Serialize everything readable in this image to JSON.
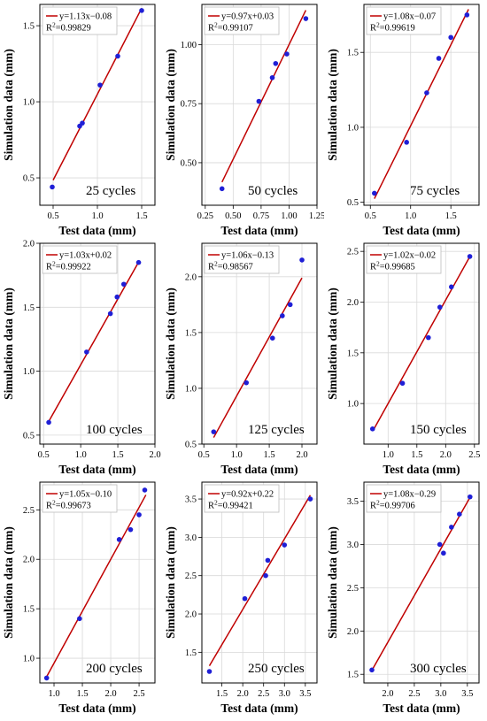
{
  "x_axis_label": "Test data (mm)",
  "y_axis_label": "Simulation data (mm)",
  "colors": {
    "line": "#c00000",
    "points": "#1f1fd6"
  },
  "chart_data": [
    {
      "type": "scatter",
      "caption": "25 cycles",
      "equation": "y=1.13x−0.08",
      "r2_prefix": "R",
      "r2_sup": "2",
      "r2_value": "=0.99829",
      "fit": {
        "slope": 1.13,
        "intercept": -0.08,
        "x_range": [
          0.5,
          1.5
        ]
      },
      "x": [
        0.49,
        0.8,
        0.83,
        1.03,
        1.23,
        1.5
      ],
      "y": [
        0.44,
        0.84,
        0.86,
        1.11,
        1.3,
        1.6
      ],
      "xlim": [
        0.35,
        1.65
      ],
      "ylim": [
        0.32,
        1.64
      ],
      "x_ticks": [
        0.5,
        1.0,
        1.5
      ],
      "x_tick_labels": [
        "0.5",
        "1.0",
        "1.5"
      ],
      "y_ticks": [
        0.5,
        1.0,
        1.5
      ],
      "y_tick_labels": [
        "0.5",
        "1.0",
        "1.5"
      ]
    },
    {
      "type": "scatter",
      "caption": "50 cycles",
      "equation": "y=0.97x+0.03",
      "r2_prefix": "R",
      "r2_sup": "2",
      "r2_value": "=0.99107",
      "fit": {
        "slope": 0.97,
        "intercept": 0.03,
        "x_range": [
          0.4,
          1.15
        ]
      },
      "x": [
        0.4,
        0.73,
        0.85,
        0.88,
        0.98,
        1.15
      ],
      "y": [
        0.39,
        0.76,
        0.86,
        0.92,
        0.96,
        1.11
      ],
      "xlim": [
        0.22,
        1.25
      ],
      "ylim": [
        0.32,
        1.17
      ],
      "x_ticks": [
        0.25,
        0.5,
        0.75,
        1.0,
        1.25
      ],
      "x_tick_labels": [
        "0.25",
        "0.50",
        "0.75",
        "1.00",
        "1.25"
      ],
      "y_ticks": [
        0.5,
        0.75,
        1.0
      ],
      "y_tick_labels": [
        "0.50",
        "0.75",
        "1.00"
      ]
    },
    {
      "type": "scatter",
      "caption": "75 cycles",
      "equation": "y=1.08x−0.07",
      "r2_prefix": "R",
      "r2_sup": "2",
      "r2_value": "=0.99619",
      "fit": {
        "slope": 1.08,
        "intercept": -0.07,
        "x_range": [
          0.55,
          1.72
        ]
      },
      "x": [
        0.55,
        0.95,
        1.2,
        1.35,
        1.5,
        1.7
      ],
      "y": [
        0.56,
        0.9,
        1.23,
        1.46,
        1.6,
        1.75
      ],
      "xlim": [
        0.42,
        1.85
      ],
      "ylim": [
        0.48,
        1.82
      ],
      "x_ticks": [
        0.5,
        1.0,
        1.5
      ],
      "x_tick_labels": [
        "0.5",
        "1.0",
        "1.5"
      ],
      "y_ticks": [
        0.5,
        1.0,
        1.5
      ],
      "y_tick_labels": [
        "0.5",
        "1.0",
        "1.5"
      ]
    },
    {
      "type": "scatter",
      "caption": "100 cycles",
      "equation": "y=1.03x+0.02",
      "r2_prefix": "R",
      "r2_sup": "2",
      "r2_value": "=0.99922",
      "fit": {
        "slope": 1.03,
        "intercept": 0.02,
        "x_range": [
          0.57,
          1.78
        ]
      },
      "x": [
        0.57,
        1.08,
        1.4,
        1.49,
        1.58,
        1.78
      ],
      "y": [
        0.6,
        1.15,
        1.45,
        1.58,
        1.68,
        1.85
      ],
      "xlim": [
        0.45,
        2.0
      ],
      "ylim": [
        0.43,
        2.0
      ],
      "x_ticks": [
        0.5,
        1.0,
        1.5,
        2.0
      ],
      "x_tick_labels": [
        "0.5",
        "1.0",
        "1.5",
        "2.0"
      ],
      "y_ticks": [
        0.5,
        1.0,
        1.5,
        2.0
      ],
      "y_tick_labels": [
        "0.5",
        "1.0",
        "1.5",
        "2.0"
      ]
    },
    {
      "type": "scatter",
      "caption": "125 cycles",
      "equation": "y=1.06x−0.13",
      "r2_prefix": "R",
      "r2_sup": "2",
      "r2_value": "=0.98567",
      "fit": {
        "slope": 1.06,
        "intercept": -0.13,
        "x_range": [
          0.65,
          2.0
        ]
      },
      "x": [
        0.65,
        1.15,
        1.55,
        1.7,
        1.82,
        2.0
      ],
      "y": [
        0.61,
        1.05,
        1.45,
        1.65,
        1.75,
        2.15
      ],
      "xlim": [
        0.47,
        2.23
      ],
      "ylim": [
        0.5,
        2.3
      ],
      "x_ticks": [
        0.5,
        1.0,
        1.5,
        2.0
      ],
      "x_tick_labels": [
        "0.5",
        "1.0",
        "1.5",
        "2.0"
      ],
      "y_ticks": [
        0.5,
        1.0,
        1.5,
        2.0
      ],
      "y_tick_labels": [
        "0.5",
        "1.0",
        "1.5",
        "2.0"
      ]
    },
    {
      "type": "scatter",
      "caption": "150 cycles",
      "equation": "y=1.02x−0.02",
      "r2_prefix": "R",
      "r2_sup": "2",
      "r2_value": "=0.99685",
      "fit": {
        "slope": 1.02,
        "intercept": -0.02,
        "x_range": [
          0.75,
          2.42
        ]
      },
      "x": [
        0.73,
        1.25,
        1.7,
        1.9,
        2.1,
        2.42
      ],
      "y": [
        0.75,
        1.2,
        1.65,
        1.95,
        2.15,
        2.45
      ],
      "xlim": [
        0.58,
        2.58
      ],
      "ylim": [
        0.6,
        2.58
      ],
      "x_ticks": [
        1.0,
        1.5,
        2.0,
        2.5
      ],
      "x_tick_labels": [
        "1.0",
        "1.5",
        "2.0",
        "2.5"
      ],
      "y_ticks": [
        1.0,
        1.5,
        2.0,
        2.5
      ],
      "y_tick_labels": [
        "1.0",
        "1.5",
        "2.0",
        "2.5"
      ]
    },
    {
      "type": "scatter",
      "caption": "200 cycles",
      "equation": "y=1.05x−0.10",
      "r2_prefix": "R",
      "r2_sup": "2",
      "r2_value": "=0.99673",
      "fit": {
        "slope": 1.05,
        "intercept": -0.1,
        "x_range": [
          0.87,
          2.62
        ]
      },
      "x": [
        0.87,
        1.45,
        2.15,
        2.35,
        2.5,
        2.6
      ],
      "y": [
        0.8,
        1.4,
        2.2,
        2.3,
        2.45,
        2.7
      ],
      "xlim": [
        0.75,
        2.78
      ],
      "ylim": [
        0.75,
        2.78
      ],
      "x_ticks": [
        1.0,
        1.5,
        2.0,
        2.5
      ],
      "x_tick_labels": [
        "1.0",
        "1.5",
        "2.0",
        "2.5"
      ],
      "y_ticks": [
        1.0,
        1.5,
        2.0,
        2.5
      ],
      "y_tick_labels": [
        "1.0",
        "1.5",
        "2.0",
        "2.5"
      ]
    },
    {
      "type": "scatter",
      "caption": "250 cycles",
      "equation": "y=0.92x+0.22",
      "r2_prefix": "R",
      "r2_sup": "2",
      "r2_value": "=0.99421",
      "fit": {
        "slope": 0.92,
        "intercept": 0.22,
        "x_range": [
          1.2,
          3.62
        ]
      },
      "x": [
        1.2,
        2.05,
        2.55,
        2.6,
        3.0,
        3.62
      ],
      "y": [
        1.25,
        2.2,
        2.5,
        2.7,
        2.9,
        3.5
      ],
      "xlim": [
        1.02,
        3.78
      ],
      "ylim": [
        1.1,
        3.72
      ],
      "x_ticks": [
        1.5,
        2.0,
        2.5,
        3.0,
        3.5
      ],
      "x_tick_labels": [
        "1.5",
        "2.0",
        "2.5",
        "3.0",
        "3.5"
      ],
      "y_ticks": [
        1.5,
        2.0,
        2.5,
        3.0,
        3.5
      ],
      "y_tick_labels": [
        "1.5",
        "2.0",
        "2.5",
        "3.0",
        "3.5"
      ]
    },
    {
      "type": "scatter",
      "caption": "300 cycles",
      "equation": "y=1.08x−0.29",
      "r2_prefix": "R",
      "r2_sup": "2",
      "r2_value": "=0.99706",
      "fit": {
        "slope": 1.08,
        "intercept": -0.29,
        "x_range": [
          1.7,
          3.55
        ]
      },
      "x": [
        1.7,
        2.98,
        3.05,
        3.2,
        3.35,
        3.55
      ],
      "y": [
        1.55,
        3.0,
        2.9,
        3.2,
        3.35,
        3.55
      ],
      "xlim": [
        1.55,
        3.72
      ],
      "ylim": [
        1.4,
        3.72
      ],
      "x_ticks": [
        2.0,
        2.5,
        3.0,
        3.5
      ],
      "x_tick_labels": [
        "2.0",
        "2.5",
        "3.0",
        "3.5"
      ],
      "y_ticks": [
        1.5,
        2.0,
        2.5,
        3.0,
        3.5
      ],
      "y_tick_labels": [
        "1.5",
        "2.0",
        "2.5",
        "3.0",
        "3.5"
      ]
    }
  ]
}
